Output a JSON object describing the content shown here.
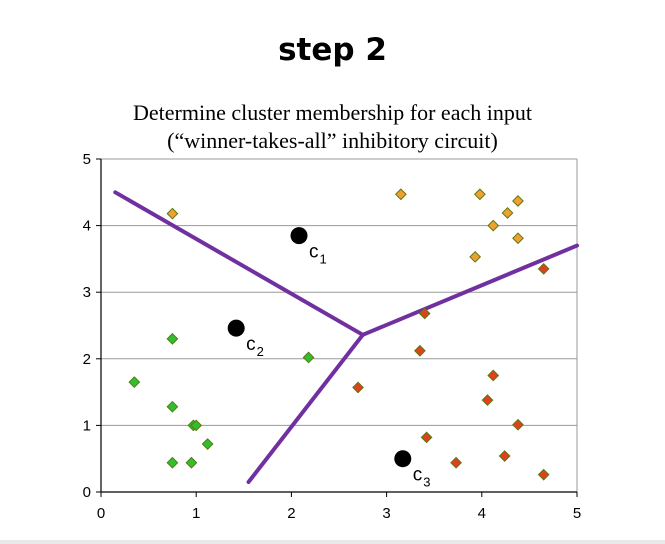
{
  "slide": {
    "heading": "step 2"
  },
  "chart_data": {
    "type": "scatter",
    "title": "Determine cluster membership for each input",
    "subtitle": "(“winner-takes-all” inhibitory circuit)",
    "xlabel": "",
    "ylabel": "",
    "xlim": [
      0,
      5
    ],
    "ylim": [
      0,
      5
    ],
    "x_ticks": [
      "0",
      "1",
      "2",
      "3",
      "4",
      "5"
    ],
    "y_ticks": [
      "0",
      "1",
      "2",
      "3",
      "4",
      "5"
    ],
    "grid": "horizontal",
    "legend": "none",
    "colors": {
      "green_points": "#2fbf2f",
      "orange_points": "#f0a030",
      "red_points": "#e04020",
      "boundary": "#7030a0",
      "centers": "#000000",
      "grid": "#9a9a9a",
      "marker_outline": "#5a7a10"
    },
    "series": [
      {
        "points": [
          [
            0.35,
            1.65
          ],
          [
            0.75,
            2.3
          ],
          [
            0.75,
            1.28
          ],
          [
            0.97,
            1.0
          ],
          [
            1.0,
            1.0
          ],
          [
            1.12,
            0.72
          ],
          [
            0.75,
            0.44
          ],
          [
            0.95,
            0.44
          ],
          [
            2.18,
            2.02
          ]
        ]
      },
      {
        "points": [
          [
            0.75,
            4.18
          ],
          [
            3.15,
            4.47
          ],
          [
            3.98,
            4.47
          ],
          [
            4.38,
            4.37
          ],
          [
            4.27,
            4.19
          ],
          [
            4.12,
            4.0
          ],
          [
            4.38,
            3.81
          ],
          [
            3.93,
            3.53
          ]
        ]
      },
      {
        "points": [
          [
            4.65,
            3.35
          ],
          [
            3.4,
            2.68
          ],
          [
            3.35,
            2.12
          ],
          [
            4.12,
            1.75
          ],
          [
            2.7,
            1.57
          ],
          [
            4.06,
            1.38
          ],
          [
            4.38,
            1.01
          ],
          [
            3.42,
            0.82
          ],
          [
            3.73,
            0.44
          ],
          [
            4.24,
            0.54
          ],
          [
            4.65,
            0.26
          ]
        ]
      }
    ],
    "centers": [
      {
        "label": "c",
        "sub": "1",
        "x": 2.08,
        "y": 3.85
      },
      {
        "label": "c",
        "sub": "2",
        "x": 1.42,
        "y": 2.46
      },
      {
        "label": "c",
        "sub": "3",
        "x": 3.17,
        "y": 0.5
      }
    ],
    "boundaries": [
      [
        [
          0.15,
          4.5
        ],
        [
          2.75,
          2.36
        ]
      ],
      [
        [
          2.75,
          2.36
        ],
        [
          5.0,
          3.7
        ]
      ],
      [
        [
          2.75,
          2.36
        ],
        [
          1.55,
          0.15
        ]
      ]
    ]
  }
}
